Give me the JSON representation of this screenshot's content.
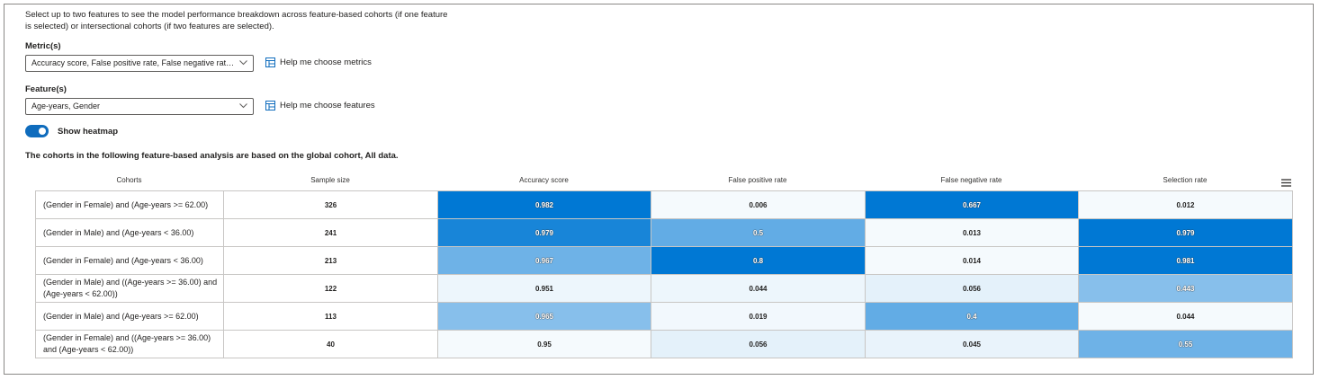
{
  "description": "Select up to two features to see the model performance breakdown across feature-based cohorts (if one feature is selected) or intersectional cohorts (if two features are selected).",
  "metrics": {
    "label": "Metric(s)",
    "value": "Accuracy score, False positive rate, False negative rate, S...",
    "help": "Help me choose metrics"
  },
  "features": {
    "label": "Feature(s)",
    "value": "Age-years, Gender",
    "help": "Help me choose features"
  },
  "heatmap_toggle": {
    "label": "Show heatmap",
    "on": true
  },
  "cohort_note": "The cohorts in the following feature-based analysis are based on the global cohort, All data.",
  "colors": {
    "accent": "#0f6cbd",
    "heat_max": "#0078d4"
  },
  "table": {
    "headers": [
      "Cohorts",
      "Sample size",
      "Accuracy score",
      "False positive rate",
      "False negative rate",
      "Selection rate"
    ],
    "rows": [
      {
        "cohort": "(Gender in Female) and (Age-years >= 62.00)",
        "values": [
          "326",
          "0.982",
          "0.006",
          "0.667",
          "0.012"
        ],
        "heat": [
          null,
          1.0,
          0.0,
          1.0,
          0.0
        ]
      },
      {
        "cohort": "(Gender in Male) and (Age-years < 36.00)",
        "values": [
          "241",
          "0.979",
          "0.5",
          "0.013",
          "0.979"
        ],
        "heat": [
          null,
          0.9,
          0.6,
          0.0,
          1.0
        ]
      },
      {
        "cohort": "(Gender in Female) and (Age-years < 36.00)",
        "values": [
          "213",
          "0.967",
          "0.8",
          "0.014",
          "0.981"
        ],
        "heat": [
          null,
          0.55,
          1.0,
          0.0,
          1.0
        ]
      },
      {
        "cohort": "(Gender in Male) and ((Age-years >= 36.00) and (Age-years < 62.00))",
        "values": [
          "122",
          "0.951",
          "0.044",
          "0.056",
          "0.443"
        ],
        "heat": [
          null,
          0.03,
          0.03,
          0.07,
          0.45
        ]
      },
      {
        "cohort": "(Gender in Male) and (Age-years >= 62.00)",
        "values": [
          "113",
          "0.965",
          "0.019",
          "0.4",
          "0.044"
        ],
        "heat": [
          null,
          0.45,
          0.01,
          0.6,
          0.0
        ]
      },
      {
        "cohort": "(Gender in Female) and ((Age-years >= 36.00) and (Age-years < 62.00))",
        "values": [
          "40",
          "0.95",
          "0.056",
          "0.045",
          "0.55"
        ],
        "heat": [
          null,
          0.0,
          0.07,
          0.05,
          0.55
        ]
      }
    ]
  }
}
